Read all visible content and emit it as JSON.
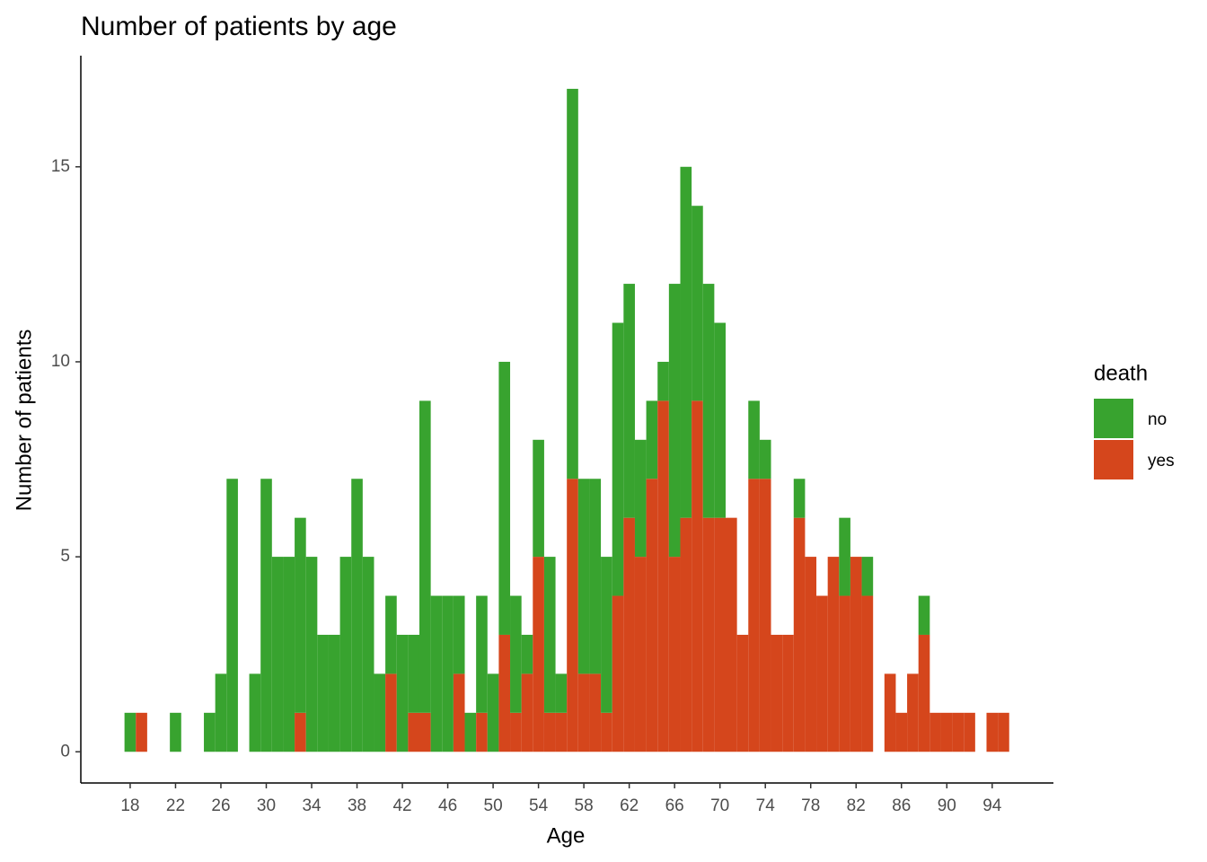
{
  "chart_data": {
    "type": "histogram",
    "stacked": true,
    "title": "Number of patients by age",
    "x_label": "Age",
    "y_label": "Number of patients",
    "legend_title": "death",
    "legend": "right",
    "bins": [
      17.5,
      18.5,
      19.5,
      20.5,
      21.5,
      22.5,
      23.5,
      24.5,
      25.5,
      26.5,
      27.5,
      28.5,
      29.5,
      30.5,
      31.5,
      32.5,
      33.5,
      34.5,
      35.5,
      36.5,
      37.5,
      38.5,
      39.5,
      40.5,
      41.5,
      42.5,
      43.5,
      44.5,
      45.5,
      46.5,
      47.5,
      48.5,
      49.5,
      50.5,
      51.5,
      52.5,
      53.5,
      54.5,
      55.5,
      56.5,
      57.5,
      58.5,
      59.5,
      60.5,
      61.5,
      62.5,
      63.5,
      64.5,
      65.5,
      66.5,
      67.5,
      68.5,
      69.5,
      70.5,
      71.5,
      72.5,
      73.5,
      74.5,
      75.5,
      76.5,
      77.5,
      78.5,
      79.5,
      80.5,
      81.5,
      82.5,
      83.5,
      84.5,
      85.5,
      86.5,
      87.5,
      88.5,
      89.5,
      90.5,
      91.5,
      92.5,
      93.5,
      94.5,
      95.5
    ],
    "series": [
      {
        "name": "no",
        "color": "#38a32f",
        "values": [
          1,
          0,
          0,
          0,
          1,
          0,
          0,
          1,
          2,
          7,
          0,
          2,
          7,
          5,
          5,
          5,
          5,
          3,
          3,
          5,
          7,
          5,
          2,
          2,
          3,
          2,
          8,
          4,
          4,
          2,
          1,
          3,
          2,
          7,
          3,
          1,
          3,
          4,
          1,
          10,
          5,
          5,
          4,
          7,
          6,
          3,
          2,
          1,
          7,
          9,
          5,
          6,
          5,
          0,
          0,
          2,
          1,
          0,
          0,
          1,
          0,
          0,
          0,
          2,
          0,
          1,
          0,
          0,
          0,
          0,
          1,
          0,
          0,
          0,
          0,
          0,
          0,
          0
        ]
      },
      {
        "name": "yes",
        "color": "#d5461c",
        "values": [
          0,
          1,
          0,
          0,
          0,
          0,
          0,
          0,
          0,
          0,
          0,
          0,
          0,
          0,
          0,
          1,
          0,
          0,
          0,
          0,
          0,
          0,
          0,
          2,
          0,
          1,
          1,
          0,
          0,
          2,
          0,
          1,
          0,
          3,
          1,
          2,
          5,
          1,
          1,
          7,
          2,
          2,
          1,
          4,
          6,
          5,
          7,
          9,
          5,
          6,
          9,
          6,
          6,
          6,
          3,
          7,
          7,
          3,
          3,
          6,
          5,
          4,
          5,
          4,
          5,
          4,
          0,
          2,
          1,
          2,
          3,
          1,
          1,
          1,
          1,
          0,
          1,
          1
        ]
      }
    ],
    "xlim": [
      13.65,
      99.4
    ],
    "xticks": [
      18,
      22,
      26,
      30,
      34,
      38,
      42,
      46,
      50,
      54,
      58,
      62,
      66,
      70,
      74,
      78,
      82,
      86,
      90,
      94
    ],
    "ylim": [
      -0.8,
      17.85
    ],
    "yticks": [
      0,
      5,
      10,
      15
    ],
    "grid": false
  }
}
